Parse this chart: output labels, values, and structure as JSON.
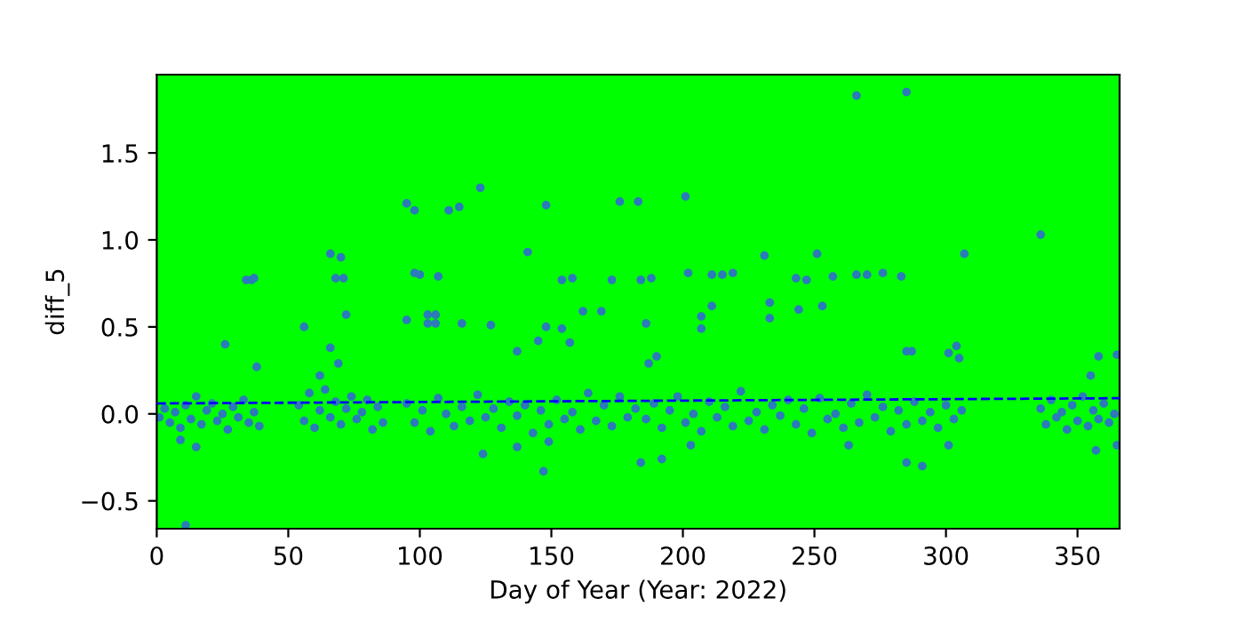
{
  "chart_data": {
    "type": "scatter",
    "xlabel": "Day of Year (Year: 2022)",
    "ylabel": "diff_5",
    "xlim": [
      0,
      366
    ],
    "ylim": [
      -0.66,
      1.95
    ],
    "xticks": [
      0,
      50,
      100,
      150,
      200,
      250,
      300,
      350
    ],
    "yticks": [
      {
        "value": -0.5,
        "label": "−0.5"
      },
      {
        "value": 0,
        "label": "0.0"
      },
      {
        "value": 0.5,
        "label": "0.5"
      },
      {
        "value": 1.0,
        "label": "1.0"
      },
      {
        "value": 1.5,
        "label": "1.5"
      }
    ],
    "grid": false,
    "marker": "circle",
    "series": [
      {
        "color": "#2b7bba",
        "x": [
          1,
          3,
          5,
          7,
          9,
          11,
          13,
          15,
          17,
          19,
          21,
          23,
          25,
          27,
          29,
          31,
          33,
          35,
          37,
          39,
          54,
          56,
          58,
          60,
          62,
          64,
          66,
          68,
          70,
          72,
          74,
          76,
          78,
          80,
          82,
          84,
          86,
          95,
          98,
          101,
          104,
          107,
          110,
          113,
          116,
          119,
          122,
          125,
          128,
          131,
          134,
          137,
          140,
          143,
          146,
          149,
          152,
          155,
          158,
          161,
          164,
          167,
          170,
          173,
          176,
          179,
          182,
          186,
          189,
          192,
          195,
          198,
          201,
          204,
          207,
          210,
          213,
          216,
          219,
          222,
          225,
          228,
          231,
          234,
          237,
          240,
          243,
          246,
          249,
          252,
          255,
          258,
          261,
          264,
          267,
          270,
          273,
          276,
          279,
          282,
          285,
          288,
          291,
          294,
          297,
          300,
          303,
          306,
          336,
          338,
          340,
          342,
          344,
          346,
          348,
          350,
          352,
          354,
          356,
          358,
          360,
          362,
          364,
          34,
          36,
          37,
          26,
          38,
          56,
          66,
          70,
          68,
          71,
          72,
          66,
          69,
          62,
          95,
          98,
          98,
          100,
          95,
          103,
          106,
          103,
          106,
          107,
          116,
          111,
          115,
          123,
          127,
          137,
          141,
          145,
          148,
          148,
          154,
          158,
          154,
          157,
          162,
          169,
          173,
          176,
          183,
          124,
          147,
          11,
          15,
          9,
          149,
          137,
          266,
          285,
          201,
          336,
          307,
          231,
          251,
          184,
          188,
          202,
          211,
          215,
          219,
          243,
          247,
          257,
          266,
          270,
          276,
          283,
          186,
          207,
          207,
          211,
          233,
          233,
          244,
          253,
          187,
          190,
          285,
          287,
          301,
          304,
          305,
          358,
          365,
          355,
          184,
          192,
          285,
          291,
          263,
          301,
          357,
          365,
          203
        ],
        "values": [
          -0.02,
          0.03,
          -0.05,
          0.01,
          -0.08,
          0.05,
          -0.03,
          0.1,
          -0.06,
          0.02,
          0.06,
          -0.04,
          0.0,
          -0.09,
          0.04,
          -0.02,
          0.08,
          -0.05,
          0.01,
          -0.07,
          0.05,
          -0.04,
          0.12,
          -0.08,
          0.02,
          0.14,
          -0.02,
          0.07,
          -0.06,
          0.03,
          0.1,
          -0.03,
          0.01,
          0.08,
          -0.09,
          0.04,
          -0.05,
          0.06,
          -0.05,
          0.02,
          -0.1,
          0.09,
          0.0,
          -0.07,
          0.04,
          -0.04,
          0.11,
          -0.02,
          0.03,
          -0.08,
          0.07,
          -0.01,
          0.05,
          -0.11,
          0.02,
          -0.06,
          0.08,
          -0.03,
          0.01,
          -0.09,
          0.12,
          -0.04,
          0.05,
          -0.07,
          0.1,
          -0.02,
          0.03,
          -0.03,
          0.06,
          -0.08,
          0.02,
          0.1,
          -0.05,
          0.0,
          -0.1,
          0.07,
          -0.02,
          0.04,
          -0.07,
          0.13,
          -0.04,
          0.01,
          -0.09,
          0.05,
          -0.01,
          0.08,
          -0.06,
          0.03,
          -0.11,
          0.09,
          -0.03,
          0.0,
          -0.08,
          0.06,
          -0.05,
          0.11,
          -0.02,
          0.04,
          -0.1,
          0.02,
          -0.06,
          0.07,
          -0.04,
          0.01,
          -0.08,
          0.05,
          -0.03,
          0.02,
          0.03,
          -0.06,
          0.08,
          -0.02,
          0.01,
          -0.09,
          0.05,
          -0.04,
          0.1,
          -0.07,
          0.02,
          -0.03,
          0.06,
          -0.05,
          0.0,
          0.77,
          0.77,
          0.78,
          0.4,
          0.27,
          0.5,
          0.92,
          0.9,
          0.78,
          0.78,
          0.57,
          0.38,
          0.29,
          0.22,
          1.21,
          1.17,
          0.81,
          0.8,
          0.54,
          0.57,
          0.57,
          0.52,
          0.52,
          0.79,
          0.52,
          1.17,
          1.19,
          1.3,
          0.51,
          0.36,
          0.93,
          0.42,
          0.5,
          1.2,
          0.77,
          0.78,
          0.49,
          0.41,
          0.59,
          0.59,
          0.77,
          1.22,
          1.22,
          -0.23,
          -0.33,
          -0.64,
          -0.19,
          -0.15,
          -0.16,
          -0.19,
          1.83,
          1.85,
          1.25,
          1.03,
          0.92,
          0.91,
          0.92,
          0.77,
          0.78,
          0.81,
          0.8,
          0.8,
          0.81,
          0.78,
          0.77,
          0.79,
          0.8,
          0.8,
          0.81,
          0.79,
          0.52,
          0.56,
          0.49,
          0.62,
          0.64,
          0.55,
          0.6,
          0.62,
          0.29,
          0.33,
          0.36,
          0.36,
          0.35,
          0.39,
          0.32,
          0.33,
          0.34,
          0.22,
          -0.28,
          -0.26,
          -0.28,
          -0.3,
          -0.18,
          -0.18,
          -0.21,
          -0.18,
          -0.18
        ]
      },
      {
        "type": "line",
        "color": "#0000ff",
        "line_style": "dashed",
        "marker": "none",
        "x": [
          0,
          366
        ],
        "values": [
          0.06,
          0.09
        ]
      }
    ]
  }
}
